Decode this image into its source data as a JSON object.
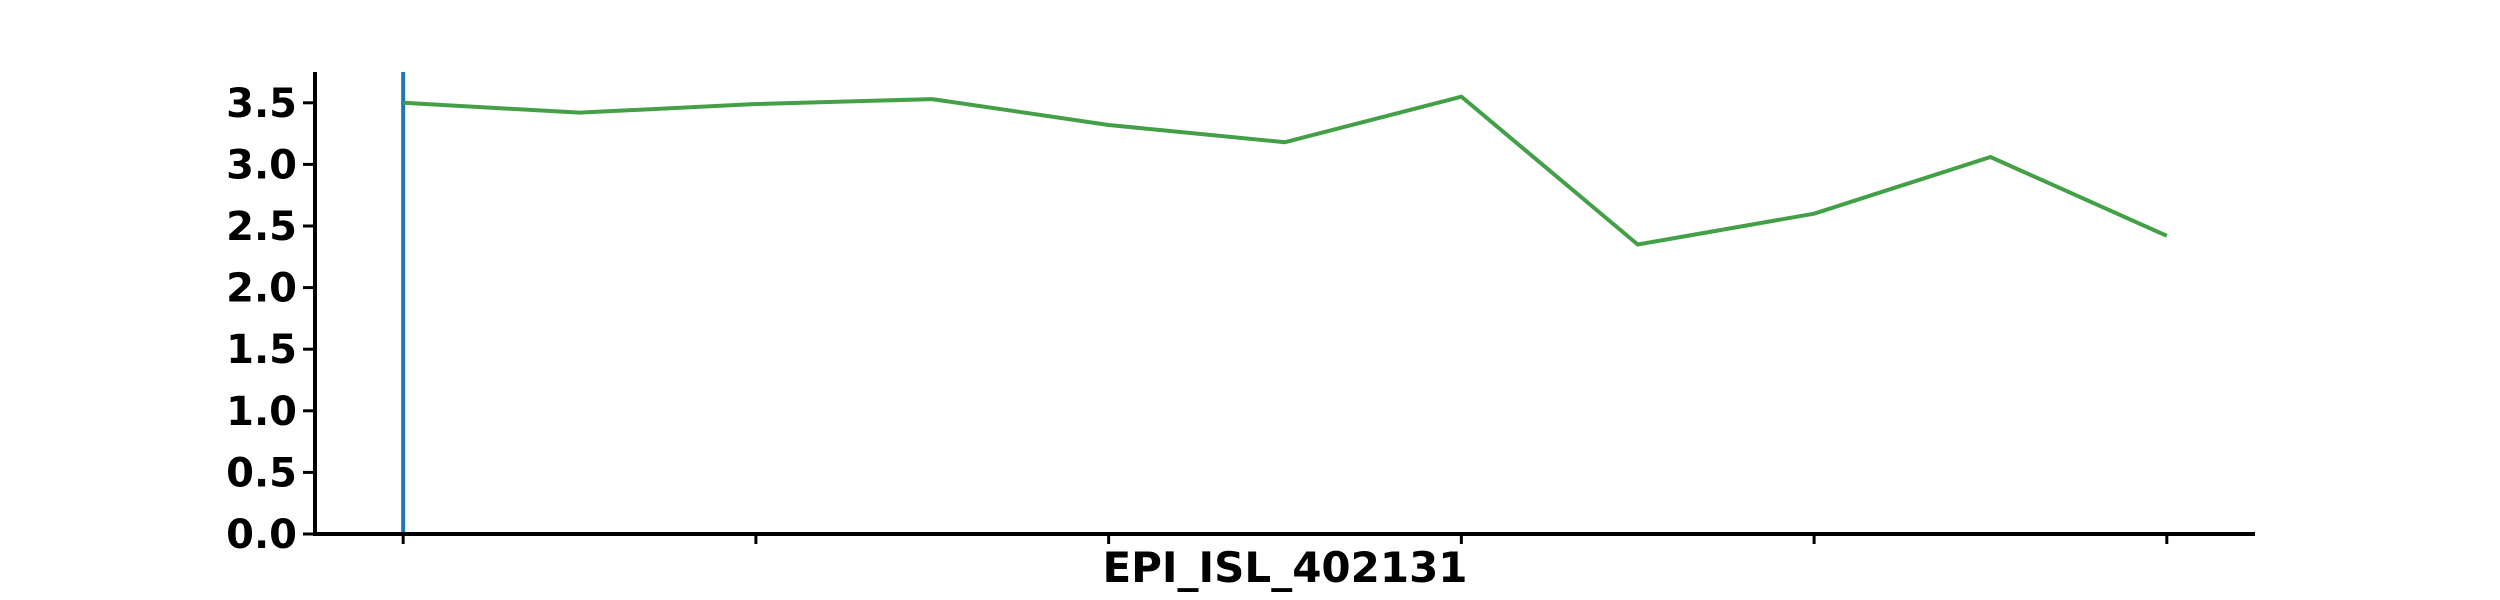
{
  "chart_data": {
    "type": "line",
    "title": "",
    "xlabel": "EPI_ISL_402131",
    "ylabel": "",
    "xlim": [
      -0.5,
      10.5
    ],
    "ylim": [
      0,
      3.75
    ],
    "y_ticks": [
      0.0,
      0.5,
      1.0,
      1.5,
      2.0,
      2.5,
      3.0,
      3.5
    ],
    "y_tick_labels": [
      "0.0",
      "0.5",
      "1.0",
      "1.5",
      "2.0",
      "2.5",
      "3.0",
      "3.5"
    ],
    "x_ticks": [
      0,
      2,
      4,
      6,
      8,
      10
    ],
    "grid": false,
    "vertical_marker_x": 0,
    "series": [
      {
        "color": "#43a047",
        "x": [
          0,
          1,
          2,
          3,
          4,
          5,
          6,
          7,
          8,
          9,
          10
        ],
        "values": [
          3.5,
          3.42,
          3.49,
          3.53,
          3.32,
          3.18,
          3.55,
          2.35,
          2.6,
          3.06,
          2.42
        ]
      }
    ],
    "marker_color": "#1f77b4",
    "axis_color": "#000000"
  }
}
